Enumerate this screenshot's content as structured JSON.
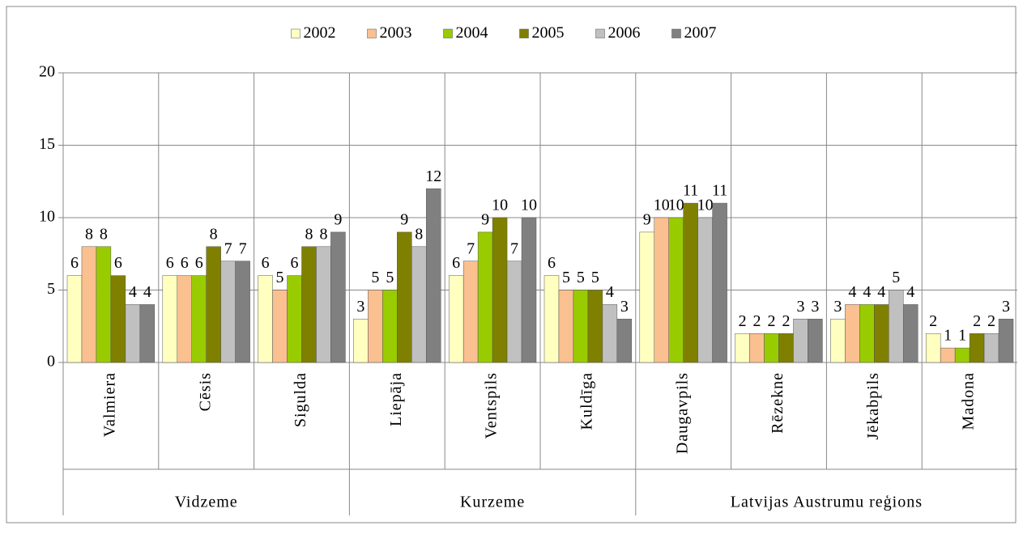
{
  "chart_data": {
    "type": "bar",
    "groups": [
      {
        "name": "Vidzeme",
        "categories": [
          "Valmiera",
          "Cēsis",
          "Sigulda"
        ]
      },
      {
        "name": "Kurzeme",
        "categories": [
          "Liepāja",
          "Ventspils",
          "Kuldīga"
        ]
      },
      {
        "name": "Latvijas Austrumu reģions",
        "categories": [
          "Daugavpils",
          "Rēzekne",
          "Jēkabpils",
          "Madona"
        ]
      }
    ],
    "series": [
      {
        "name": "2002",
        "color": "#ffffc0",
        "values": [
          6,
          6,
          6,
          3,
          6,
          6,
          9,
          2,
          3,
          2
        ]
      },
      {
        "name": "2003",
        "color": "#fac090",
        "values": [
          8,
          6,
          5,
          5,
          7,
          5,
          10,
          2,
          4,
          1
        ]
      },
      {
        "name": "2004",
        "color": "#99cc00",
        "values": [
          8,
          6,
          6,
          5,
          9,
          5,
          10,
          2,
          4,
          1
        ]
      },
      {
        "name": "2005",
        "color": "#808000",
        "values": [
          6,
          8,
          8,
          9,
          10,
          5,
          11,
          2,
          4,
          2
        ]
      },
      {
        "name": "2006",
        "color": "#c0c0c0",
        "values": [
          4,
          7,
          8,
          8,
          7,
          4,
          10,
          3,
          5,
          2
        ]
      },
      {
        "name": "2007",
        "color": "#808080",
        "values": [
          4,
          7,
          9,
          12,
          10,
          3,
          11,
          3,
          4,
          3
        ]
      }
    ],
    "ylim": [
      0,
      20
    ],
    "yticks": [
      0,
      5,
      10,
      15,
      20
    ],
    "grid": true,
    "legend": "top"
  }
}
